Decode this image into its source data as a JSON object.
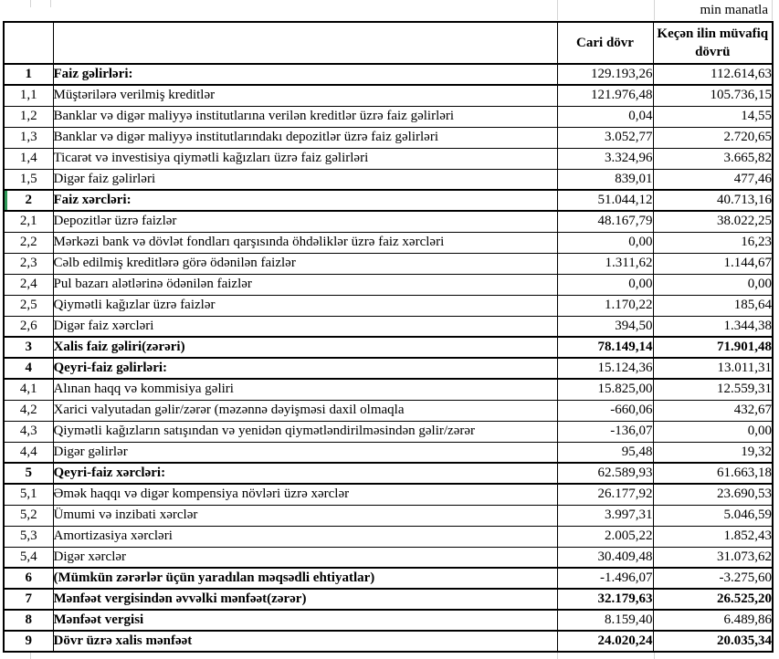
{
  "meta": {
    "unit_label": "min manatla"
  },
  "colors": {
    "background": "#ffffff",
    "text": "#000000",
    "table_border": "#000000",
    "grid_line": "#d4d4d4",
    "selection_green": "#2e9958"
  },
  "table": {
    "header": {
      "no": "",
      "label": "",
      "current": "Cari dövr",
      "previous": "Keçən ilin müvafiq dövrü"
    },
    "rows": [
      {
        "no": "1",
        "label": "Faiz gəlirləri:",
        "current": "129.193,26",
        "previous": "112.614,63",
        "section": true,
        "bold_values": false
      },
      {
        "no": "1,1",
        "label": "Müştərilərə verilmiş kreditlər",
        "current": "121.976,48",
        "previous": "105.736,15",
        "section": false,
        "bold_values": false
      },
      {
        "no": "1,2",
        "label": "Banklar və digər maliyyə institutlarına verilən kreditlər üzrə faiz gəlirləri",
        "current": "0,04",
        "previous": "14,55",
        "section": false,
        "bold_values": false
      },
      {
        "no": "1,3",
        "label": "Banklar və digər maliyyə institutlarındakı depozitlər üzrə faiz gəlirləri",
        "current": "3.052,77",
        "previous": "2.720,65",
        "section": false,
        "bold_values": false
      },
      {
        "no": "1,4",
        "label": "Ticarət və investisiya qiymətli kağızları üzrə faiz gəlirləri",
        "current": "3.324,96",
        "previous": "3.665,82",
        "section": false,
        "bold_values": false
      },
      {
        "no": "1,5",
        "label": "Digər faiz gəlirləri",
        "current": "839,01",
        "previous": "477,46",
        "section": false,
        "bold_values": false
      },
      {
        "no": "2",
        "label": "Faiz xərcləri:",
        "current": "51.044,12",
        "previous": "40.713,16",
        "section": true,
        "bold_values": false,
        "green_tick": true
      },
      {
        "no": "2,1",
        "label": "Depozitlər üzrə faizlər",
        "current": "48.167,79",
        "previous": "38.022,25",
        "section": false,
        "bold_values": false
      },
      {
        "no": "2,2",
        "label": "Mərkəzi bank və dövlət fondları qarşısında öhdəliklər üzrə faiz xərcləri",
        "current": "0,00",
        "previous": "16,23",
        "section": false,
        "bold_values": false
      },
      {
        "no": "2,3",
        "label": "Cəlb edilmiş kreditlərə görə ödənilən faizlər",
        "current": "1.311,62",
        "previous": "1.144,67",
        "section": false,
        "bold_values": false
      },
      {
        "no": "2,4",
        "label": "Pul bazarı alətlərinə ödənilən faizlər",
        "current": "0,00",
        "previous": "0,00",
        "section": false,
        "bold_values": false
      },
      {
        "no": "2,5",
        "label": "Qiymətli kağızlar üzrə faizlər",
        "current": "1.170,22",
        "previous": "185,64",
        "section": false,
        "bold_values": false
      },
      {
        "no": "2,6",
        "label": "Digər faiz xərcləri",
        "current": "394,50",
        "previous": "1.344,38",
        "section": false,
        "bold_values": false
      },
      {
        "no": "3",
        "label": "Xalis faiz gəliri(zərəri)",
        "current": "78.149,14",
        "previous": "71.901,48",
        "section": true,
        "bold_values": true
      },
      {
        "no": "4",
        "label": "Qeyri-faiz gəlirləri:",
        "current": "15.124,36",
        "previous": "13.011,31",
        "section": true,
        "bold_values": false
      },
      {
        "no": "4,1",
        "label": "Alınan haqq və kommisiya gəliri",
        "current": "15.825,00",
        "previous": "12.559,31",
        "section": false,
        "bold_values": false
      },
      {
        "no": "4,2",
        "label": "Xarici valyutadan gəlir/zərər (məzənnə dəyişməsi daxil olmaqla",
        "current": "-660,06",
        "previous": "432,67",
        "section": false,
        "bold_values": false
      },
      {
        "no": "4,3",
        "label": "Qiymətli kağızların satışından və yenidən qiymətləndirilməsindən gəlir/zərər",
        "current": "-136,07",
        "previous": "0,00",
        "section": false,
        "bold_values": false
      },
      {
        "no": "4,4",
        "label": "Digər gəlirlər",
        "current": "95,48",
        "previous": "19,32",
        "section": false,
        "bold_values": false
      },
      {
        "no": "5",
        "label": "Qeyri-faiz xərcləri:",
        "current": "62.589,93",
        "previous": "61.663,18",
        "section": true,
        "bold_values": false
      },
      {
        "no": "5,1",
        "label": "Əmək haqqı və digər kompensiya növləri üzrə xərclər",
        "current": "26.177,92",
        "previous": "23.690,53",
        "section": false,
        "bold_values": false
      },
      {
        "no": "5,2",
        "label": "Ümumi və inzibati xərclər",
        "current": "3.997,31",
        "previous": "5.046,59",
        "section": false,
        "bold_values": false
      },
      {
        "no": "5,3",
        "label": "Amortizasiya xərcləri",
        "current": "2.005,22",
        "previous": "1.852,43",
        "section": false,
        "bold_values": false
      },
      {
        "no": "5,4",
        "label": "Digər xərclər",
        "current": "30.409,48",
        "previous": "31.073,62",
        "section": false,
        "bold_values": false
      },
      {
        "no": "6",
        "label": "(Mümkün zərərlər üçün yaradılan məqsədli ehtiyatlar)",
        "current": "-1.496,07",
        "previous": "-3.275,60",
        "section": true,
        "bold_values": false
      },
      {
        "no": "7",
        "label": "Mənfəət vergisindən əvvəlki mənfəət(zərər)",
        "current": "32.179,63",
        "previous": "26.525,20",
        "section": true,
        "bold_values": true
      },
      {
        "no": "8",
        "label": "Mənfəət vergisi",
        "current": "8.159,40",
        "previous": "6.489,86",
        "section": true,
        "bold_values": false
      },
      {
        "no": "9",
        "label": "Dövr üzrə xalis mənfəət",
        "current": "24.020,24",
        "previous": "20.035,34",
        "section": true,
        "bold_values": true
      }
    ]
  }
}
